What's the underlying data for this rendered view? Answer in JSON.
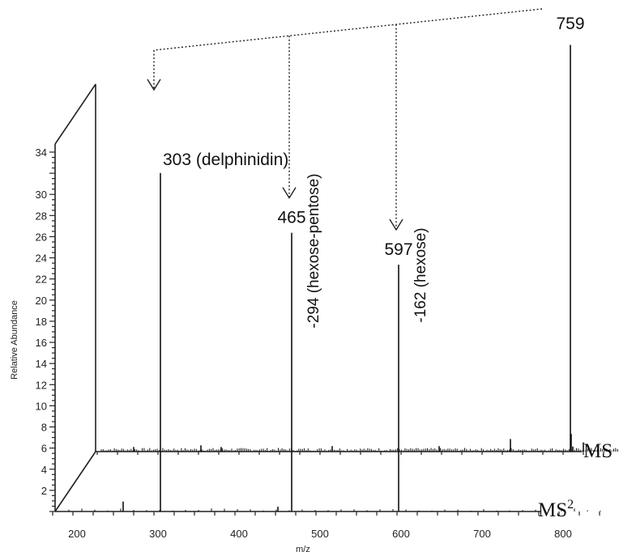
{
  "chart_data": {
    "type": "line",
    "subtype": "mass spectrum (3D stacked)",
    "xlabel": "m/z",
    "ylabel": "Relative Abundance",
    "x_ticks": [
      200,
      300,
      400,
      500,
      600,
      700,
      800
    ],
    "y_ticks": [
      2,
      4,
      6,
      8,
      10,
      12,
      14,
      16,
      18,
      20,
      22,
      24,
      26,
      28,
      30,
      34
    ],
    "xlim": [
      165,
      870
    ],
    "ylim": [
      0,
      34.5
    ],
    "traces": [
      {
        "name": "MS",
        "label": "MS",
        "peaks": [
          {
            "mz": 759,
            "abundance": 97
          },
          {
            "mz": 303,
            "abundance": 1.5
          },
          {
            "mz": 465,
            "abundance": 1.3
          },
          {
            "mz": 597,
            "abundance": 1.3
          },
          {
            "mz": 685,
            "abundance": 3
          },
          {
            "mz": 220,
            "abundance": 1.1
          },
          {
            "mz": 328,
            "abundance": 1.1
          },
          {
            "mz": 760,
            "abundance": 4.2
          },
          {
            "mz": 762,
            "abundance": 1.2
          },
          {
            "mz": 775,
            "abundance": 2.2
          }
        ]
      },
      {
        "name": "MS2",
        "label_main": "MS",
        "label_sup": "2",
        "peaks": [
          {
            "mz": 303,
            "abundance": 85
          },
          {
            "mz": 465,
            "abundance": 70
          },
          {
            "mz": 597,
            "abundance": 62
          },
          {
            "mz": 257,
            "abundance": 2.5
          },
          {
            "mz": 448,
            "abundance": 1.2
          }
        ]
      }
    ],
    "peak_labels": [
      "759",
      "303 (delphinidin)",
      "465",
      "597"
    ],
    "annotations": [
      "-294 (hexose-pentose)",
      "-162 (hexose)"
    ]
  }
}
